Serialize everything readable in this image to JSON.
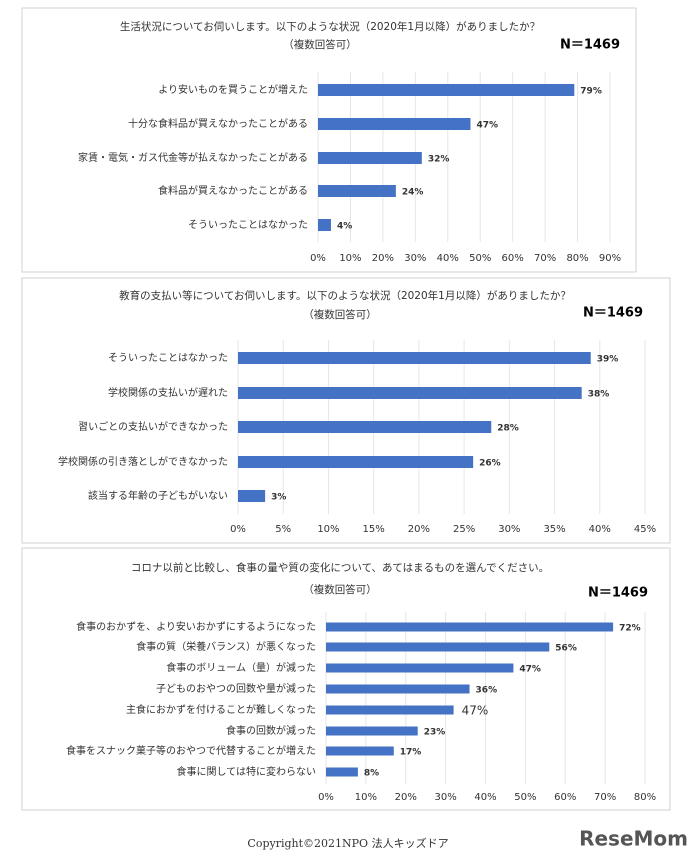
{
  "chart_data": [
    {
      "type": "bar",
      "title": "生活状況についてお伺いします。以下のような状況（2020年1月以降）がありましたか？",
      "subtitle": "（複数回答可）",
      "sample": "N＝1469",
      "categories": [
        "より安いものを買うことが増えた",
        "十分な食料品が買えなかったことがある",
        "家賃・電気・ガス代金等が払えなかったことがある",
        "食料品が買えなかったことがある",
        "そういったことはなかった"
      ],
      "values": [
        79,
        47,
        32,
        24,
        4
      ],
      "value_labels": [
        "79%",
        "47%",
        "32%",
        "24%",
        "4%"
      ],
      "color": "#4472c4",
      "xlim": [
        0,
        90
      ],
      "xticks": [
        {
          "value": 0,
          "label": "0%"
        },
        {
          "value": 10,
          "label": "10%"
        },
        {
          "value": 20,
          "label": "20%"
        },
        {
          "value": 30,
          "label": "30%"
        },
        {
          "value": 40,
          "label": "40%"
        },
        {
          "value": 50,
          "label": "50%"
        },
        {
          "value": 60,
          "label": "60%"
        },
        {
          "value": 70,
          "label": "70%"
        },
        {
          "value": 80,
          "label": "80%"
        },
        {
          "value": 90,
          "label": "90%"
        }
      ],
      "grid": true
    },
    {
      "type": "bar",
      "title": "教育の支払い等についてお伺いします。以下のような状況（2020年1月以降）がありましたか？",
      "subtitle": "（複数回答可）",
      "sample": "N＝1469",
      "categories": [
        "そういったことはなかった",
        "学校関係の支払いが遅れた",
        "習いごとの支払いができなかった",
        "学校関係の引き落としができなかった",
        "該当する年齢の子どもがいない"
      ],
      "values": [
        39,
        38,
        28,
        26,
        3
      ],
      "value_labels": [
        "39%",
        "38%",
        "28%",
        "26%",
        "3%"
      ],
      "color": "#4472c4",
      "xlim": [
        0,
        45
      ],
      "xticks": [
        {
          "value": 0,
          "label": "0%"
        },
        {
          "value": 5,
          "label": "5%"
        },
        {
          "value": 10,
          "label": "10%"
        },
        {
          "value": 15,
          "label": "15%"
        },
        {
          "value": 20,
          "label": "20%"
        },
        {
          "value": 25,
          "label": "25%"
        },
        {
          "value": 30,
          "label": "30%"
        },
        {
          "value": 35,
          "label": "35%"
        },
        {
          "value": 40,
          "label": "40%"
        },
        {
          "value": 45,
          "label": "45%"
        }
      ],
      "grid": true
    },
    {
      "type": "bar",
      "title": "コロナ以前と比較し、食事の量や質の変化について、あてはまるものを選んでください。",
      "subtitle": "（複数回答可）",
      "sample": "N＝1469",
      "categories": [
        "食事のおかずを、より安いおかずにするようになった",
        "食事の質（栄養バランス）が悪くなった",
        "食事のボリューム（量）が減った",
        "子どものおやつの回数や量が減った",
        "主食におかずを付けることが難しくなった",
        "食事の回数が減った",
        "食事をスナック菓子等のおやつで代替することが増えた",
        "食事に関しては特に変わらない"
      ],
      "values": [
        72,
        56,
        47,
        36,
        32,
        23,
        17,
        8
      ],
      "value_labels": [
        "72%",
        "56%",
        "47%",
        "36%",
        null,
        "23%",
        "17%",
        "8%"
      ],
      "annotations": [
        "47%"
      ],
      "color": "#4472c4",
      "xlim": [
        0,
        80
      ],
      "xticks": [
        {
          "value": 0,
          "label": "0%"
        },
        {
          "value": 10,
          "label": "10%"
        },
        {
          "value": 20,
          "label": "20%"
        },
        {
          "value": 30,
          "label": "30%"
        },
        {
          "value": 40,
          "label": "40%"
        },
        {
          "value": 50,
          "label": "50%"
        },
        {
          "value": 60,
          "label": "60%"
        },
        {
          "value": 70,
          "label": "70%"
        },
        {
          "value": 80,
          "label": "80%"
        }
      ],
      "grid": true
    }
  ],
  "footer": {
    "copyright": "Copyright©2021NPO 法人キッズドア",
    "logo": "ReseMom"
  }
}
